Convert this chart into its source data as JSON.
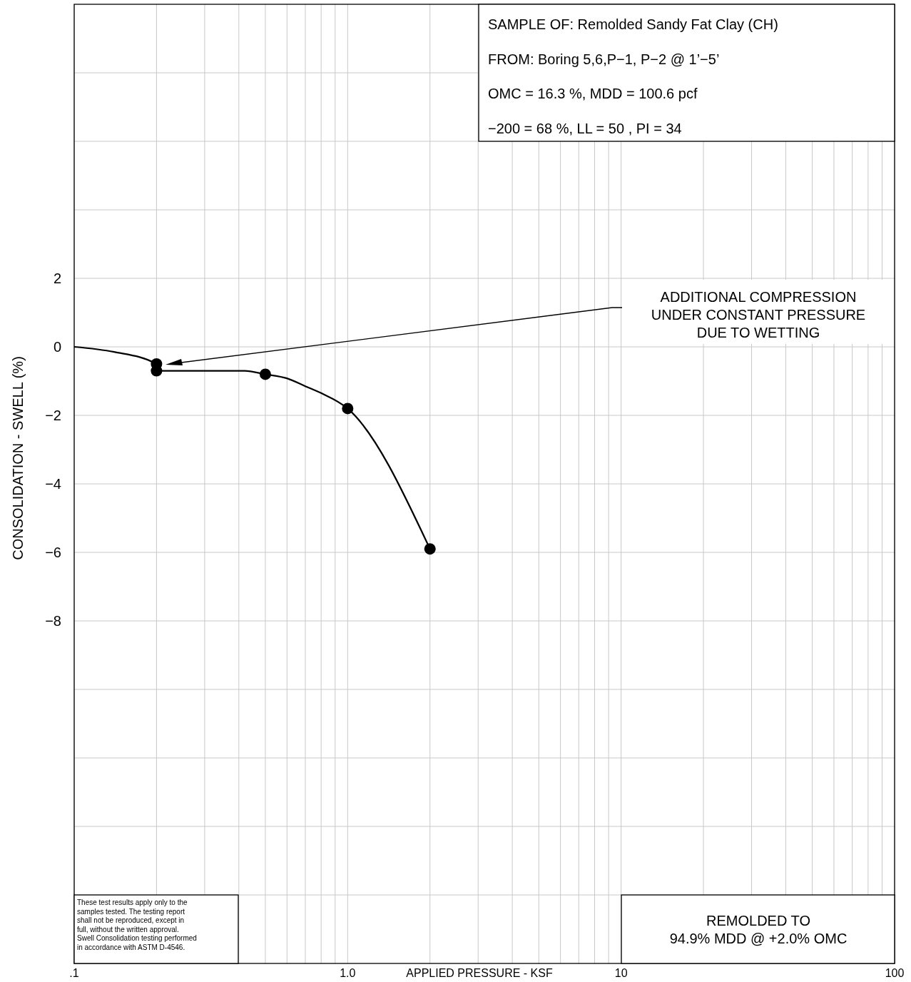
{
  "chart_data": {
    "type": "line",
    "xlabel": "APPLIED PRESSURE - KSF",
    "ylabel": "CONSOLIDATION - SWELL (%)",
    "log": "x",
    "grid": true,
    "xlim": [
      0.1,
      100
    ],
    "ylim": [
      -18,
      10
    ],
    "xticks": [
      {
        "value": 0.1,
        "label": ".1"
      },
      {
        "value": 0.2,
        "label": null
      },
      {
        "value": 0.3,
        "label": null
      },
      {
        "value": 0.4,
        "label": null
      },
      {
        "value": 0.5,
        "label": null
      },
      {
        "value": 0.6,
        "label": null
      },
      {
        "value": 0.7,
        "label": null
      },
      {
        "value": 0.8,
        "label": null
      },
      {
        "value": 0.9,
        "label": null
      },
      {
        "value": 1,
        "label": "1.0"
      },
      {
        "value": 2,
        "label": null
      },
      {
        "value": 3,
        "label": null
      },
      {
        "value": 4,
        "label": null
      },
      {
        "value": 5,
        "label": null
      },
      {
        "value": 6,
        "label": null
      },
      {
        "value": 7,
        "label": null
      },
      {
        "value": 8,
        "label": null
      },
      {
        "value": 9,
        "label": null
      },
      10,
      {
        "value": 20,
        "label": null
      },
      {
        "value": 30,
        "label": null
      },
      {
        "value": 40,
        "label": null
      },
      {
        "value": 50,
        "label": null
      },
      {
        "value": 60,
        "label": null
      },
      {
        "value": 70,
        "label": null
      },
      {
        "value": 80,
        "label": null
      },
      {
        "value": 90,
        "label": null
      },
      100
    ],
    "yticks": [
      {
        "value": 8,
        "label": null
      },
      {
        "value": 6,
        "label": null
      },
      {
        "value": 4,
        "label": null
      },
      2,
      0,
      {
        "value": -2,
        "label": "−2"
      },
      {
        "value": -4,
        "label": "−4"
      },
      {
        "value": -6,
        "label": "−6"
      },
      {
        "value": -8,
        "label": "−8"
      },
      {
        "value": -10,
        "label": null
      },
      {
        "value": -12,
        "label": null
      },
      {
        "value": -14,
        "label": null
      },
      {
        "value": -16,
        "label": null
      }
    ],
    "series": [
      {
        "color": "#000000",
        "marker": "none",
        "x": [
          0.1,
          0.14,
          0.2,
          0.2,
          0.42,
          0.5,
          0.6,
          0.7,
          0.8,
          1.0,
          2.0
        ],
        "values": [
          0,
          -0.15,
          -0.5,
          -0.7,
          -0.7,
          -0.8,
          -0.92,
          -1.15,
          -1.35,
          -1.8,
          -5.9
        ]
      },
      {
        "type": "scatter",
        "color": "#000000",
        "marker": "circle",
        "x": [
          0.2,
          0.2,
          0.5,
          1.0,
          2.0
        ],
        "values": [
          -0.5,
          -0.7,
          -0.8,
          -1.8,
          -5.9
        ]
      }
    ],
    "annotations": [
      "ADDITIONAL COMPRESSION\nUNDER CONSTANT PRESSURE\nDUE TO WETTING",
      "SAMPLE OF: Remolded Sandy Fat Clay (CH)\nFROM: Boring 5,6,P−1, P−2 @ 1’−5’\nOMC = 16.3 %, MDD = 100.6 pcf\n−200 = 68 %, LL = 50 , PI = 34",
      "REMOLDED TO\n94.9% MDD @ +2.0% OMC",
      "These test results apply only to the\nsamples tested. The testing report\nshall not be reproduced, except in\nfull, without the written approval.\nSwell Consolidation testing performed\nin accordance with ASTM D-4546."
    ]
  }
}
